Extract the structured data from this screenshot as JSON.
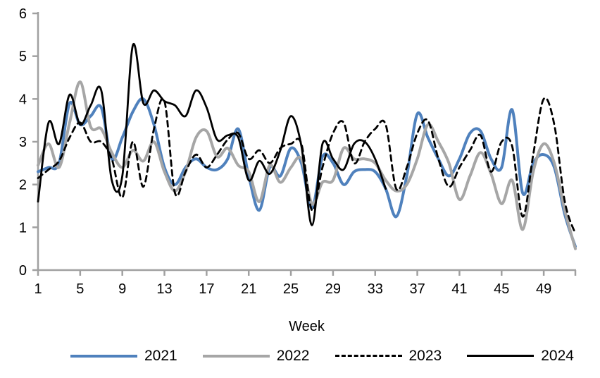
{
  "chart": {
    "type": "line",
    "xlabel": "Week",
    "x_range": [
      1,
      52
    ],
    "x_ticks": [
      1,
      5,
      9,
      13,
      17,
      21,
      25,
      29,
      33,
      37,
      41,
      45,
      49
    ],
    "ylim": [
      0,
      6
    ],
    "y_ticks": [
      0,
      1,
      2,
      3,
      4,
      5,
      6
    ],
    "grid": false,
    "legend_position": "bottom",
    "axis_color": "#a0a0a0",
    "chart_data": {
      "type": "line",
      "x_weeks": [
        1,
        2,
        3,
        4,
        5,
        6,
        7,
        8,
        9,
        10,
        11,
        12,
        13,
        14,
        15,
        16,
        17,
        18,
        19,
        20,
        21,
        22,
        23,
        24,
        25,
        26,
        27,
        28,
        29,
        30,
        31,
        32,
        33,
        34,
        35,
        36,
        37,
        38,
        39,
        40,
        41,
        42,
        43,
        44,
        45,
        46,
        47,
        48,
        49,
        50,
        51,
        52
      ],
      "series": [
        {
          "name": "2021",
          "color": "#4f81bd",
          "style": "solid",
          "stroke_width": 4,
          "values": [
            2.3,
            2.4,
            2.5,
            3.9,
            3.4,
            3.6,
            3.8,
            2.6,
            3.1,
            3.7,
            4.0,
            3.4,
            2.4,
            2.0,
            2.4,
            2.6,
            2.4,
            2.35,
            2.6,
            3.3,
            2.2,
            1.4,
            2.4,
            2.2,
            2.85,
            2.5,
            1.45,
            2.65,
            2.5,
            2.0,
            2.3,
            2.35,
            2.3,
            1.9,
            1.25,
            2.2,
            3.65,
            3.1,
            2.6,
            2.2,
            2.6,
            3.2,
            3.25,
            2.6,
            2.4,
            3.75,
            1.8,
            2.5,
            2.7,
            2.4,
            1.3,
            0.55
          ]
        },
        {
          "name": "2022",
          "color": "#a6a6a6",
          "style": "solid",
          "stroke_width": 4,
          "values": [
            2.45,
            2.95,
            2.4,
            3.45,
            4.4,
            3.35,
            3.3,
            2.75,
            2.4,
            2.8,
            2.55,
            3.0,
            2.3,
            1.85,
            2.3,
            3.1,
            3.25,
            2.65,
            2.85,
            2.45,
            2.3,
            1.6,
            2.45,
            2.05,
            2.4,
            2.6,
            1.55,
            2.05,
            2.1,
            2.85,
            2.6,
            2.6,
            2.5,
            2.1,
            1.85,
            2.0,
            2.6,
            3.4,
            3.0,
            2.5,
            1.65,
            2.2,
            2.75,
            2.25,
            1.55,
            2.1,
            0.95,
            2.3,
            2.95,
            2.5,
            1.4,
            0.5
          ]
        },
        {
          "name": "2023",
          "color": "#000000",
          "style": "dashed",
          "stroke_width": 2.8,
          "values": [
            2.15,
            2.35,
            2.55,
            3.1,
            3.45,
            3.0,
            3.0,
            2.6,
            1.7,
            3.0,
            1.95,
            3.3,
            3.95,
            1.8,
            2.3,
            2.7,
            2.4,
            2.7,
            3.05,
            3.2,
            2.6,
            2.8,
            2.5,
            2.85,
            2.95,
            2.95,
            1.4,
            2.4,
            3.2,
            3.45,
            2.5,
            3.0,
            3.3,
            3.4,
            1.9,
            2.4,
            3.2,
            3.5,
            2.6,
            1.95,
            2.4,
            2.8,
            3.15,
            2.3,
            3.0,
            2.9,
            1.25,
            2.7,
            4.0,
            3.4,
            1.6,
            0.85
          ]
        },
        {
          "name": "2024",
          "color": "#000000",
          "style": "solid",
          "stroke_width": 2.8,
          "values": [
            1.6,
            3.45,
            2.95,
            4.1,
            3.4,
            3.85,
            4.2,
            2.1,
            2.2,
            5.25,
            3.9,
            4.2,
            3.95,
            3.85,
            3.6,
            4.2,
            3.8,
            3.05,
            3.15,
            3.1,
            2.1,
            2.55,
            2.25,
            2.8,
            3.6,
            2.9,
            1.05,
            2.95,
            2.6,
            2.35,
            2.95,
            3.0,
            2.6,
            1.9
          ]
        }
      ]
    },
    "legend": {
      "items": [
        {
          "label": "2021"
        },
        {
          "label": "2022"
        },
        {
          "label": "2023"
        },
        {
          "label": "2024"
        }
      ]
    }
  }
}
